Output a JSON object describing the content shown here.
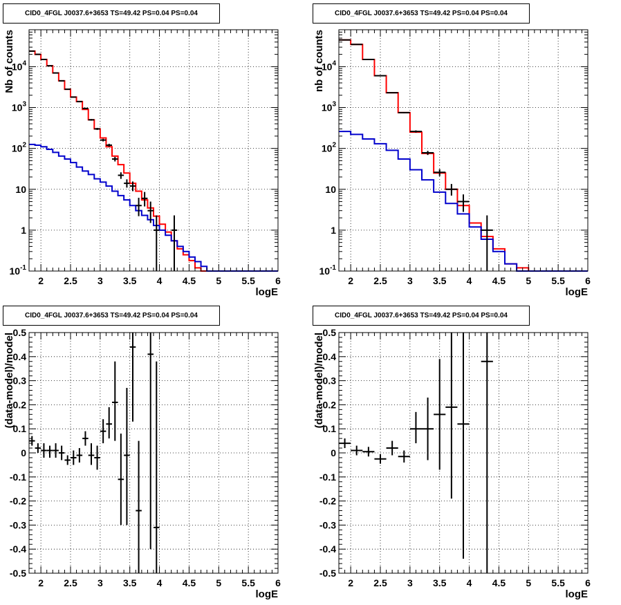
{
  "colors": {
    "data": "#000000",
    "total_model": "#ff0000",
    "source_model": "#0000cc",
    "grid": "#000000"
  },
  "chart_data": [
    {
      "id": "tl",
      "type": "line",
      "title": "CID0_4FGL J0037.6+3653 TS=49.42 PS=0.04 PS=0.04",
      "xlabel": "logE",
      "ylabel": "Nb of counts",
      "xlim": [
        1.8,
        6.0
      ],
      "ylim": [
        0.1,
        80000
      ],
      "yscale": "log",
      "grid": true,
      "xticks": [
        2,
        2.5,
        3,
        3.5,
        4,
        4.5,
        5,
        5.5,
        6
      ],
      "xtick_labels": [
        "2",
        "2.5",
        "3",
        "3.5",
        "4",
        "4.5",
        "5",
        "5.5",
        "6"
      ],
      "yticks": [
        0.1,
        1,
        10,
        100,
        1000,
        10000
      ],
      "ytick_labels": [
        "10^-1",
        "1",
        "10",
        "10^2",
        "10^3",
        "10^4"
      ],
      "bin_edges": [
        1.8,
        1.9,
        2.0,
        2.1,
        2.2,
        2.3,
        2.4,
        2.5,
        2.6,
        2.7,
        2.8,
        2.9,
        3.0,
        3.1,
        3.2,
        3.3,
        3.4,
        3.5,
        3.6,
        3.7,
        3.8,
        3.9,
        4.0,
        4.1,
        4.2,
        4.3,
        4.4,
        4.5,
        4.6,
        4.7,
        4.8,
        4.9,
        5.0,
        5.1,
        5.2,
        5.3,
        5.4,
        5.5,
        5.6,
        5.7,
        5.8,
        5.9,
        6.0
      ],
      "series": [
        {
          "name": "total model",
          "kind": "step",
          "color": "total_model",
          "values": [
            24000,
            20000,
            15000,
            10500,
            7000,
            4500,
            2800,
            1800,
            1400,
            900,
            500,
            300,
            180,
            110,
            65,
            40,
            25,
            14,
            9,
            5.5,
            3.5,
            2.2,
            1.4,
            0.9,
            0.55,
            0.35,
            0.25,
            0.18,
            0.12,
            0.1,
            0.1,
            0.1,
            0.1,
            0.1,
            0.1,
            0.1,
            0.1,
            0.1,
            0.1,
            0.1,
            0.1,
            0.1
          ]
        },
        {
          "name": "source model",
          "kind": "step",
          "color": "source_model",
          "values": [
            125,
            120,
            110,
            95,
            80,
            65,
            55,
            45,
            35,
            28,
            23,
            18,
            15,
            12,
            9,
            7,
            5.5,
            4,
            3,
            2.3,
            1.8,
            1.3,
            1.0,
            0.75,
            0.55,
            0.4,
            0.3,
            0.22,
            0.17,
            0.13,
            0.1,
            0.1,
            0.1,
            0.1,
            0.1,
            0.1,
            0.1,
            0.1,
            0.1,
            0.1,
            0.1,
            0.1
          ]
        },
        {
          "name": "data",
          "kind": "errorbar",
          "color": "data",
          "x": [
            1.85,
            1.95,
            2.05,
            2.15,
            2.25,
            2.35,
            2.45,
            2.55,
            2.65,
            2.75,
            2.85,
            2.95,
            3.05,
            3.15,
            3.25,
            3.35,
            3.45,
            3.55,
            3.65,
            3.75,
            3.85,
            3.95,
            4.25
          ],
          "y": [
            24000,
            20000,
            15000,
            10500,
            7000,
            4500,
            2800,
            1800,
            1400,
            950,
            500,
            300,
            160,
            120,
            55,
            22,
            14,
            12,
            4,
            6,
            3,
            1,
            1
          ],
          "ylo": [
            23800,
            19800,
            14850,
            10400,
            6900,
            4430,
            2750,
            1760,
            1360,
            920,
            478,
            283,
            148,
            110,
            48,
            18,
            11,
            9,
            2.2,
            3.8,
            1.5,
            0.1,
            0.1
          ],
          "yhi": [
            24200,
            20200,
            15150,
            10600,
            7100,
            4570,
            2850,
            1840,
            1440,
            980,
            522,
            317,
            172,
            130,
            62,
            26,
            17.5,
            15.5,
            6.2,
            8.6,
            5,
            2.3,
            2.3
          ],
          "xerr": 0.05
        }
      ]
    },
    {
      "id": "tr",
      "type": "line",
      "title": "CID0_4FGL J0037.6+3653 TS=49.42 PS=0.04 PS=0.04",
      "xlabel": "logE",
      "ylabel": "nb of counts",
      "xlim": [
        1.8,
        6.0
      ],
      "ylim": [
        0.1,
        80000
      ],
      "yscale": "log",
      "grid": true,
      "xticks": [
        2,
        2.5,
        3,
        3.5,
        4,
        4.5,
        5,
        5.5,
        6
      ],
      "xtick_labels": [
        "2",
        "2.5",
        "3",
        "3.5",
        "4",
        "4.5",
        "5",
        "5.5",
        "6"
      ],
      "yticks": [
        0.1,
        1,
        10,
        100,
        1000,
        10000
      ],
      "ytick_labels": [
        "10^-1",
        "1",
        "10",
        "10^2",
        "10^3",
        "10^4"
      ],
      "bin_edges": [
        1.8,
        2.0,
        2.2,
        2.4,
        2.6,
        2.8,
        3.0,
        3.2,
        3.4,
        3.6,
        3.8,
        4.0,
        4.2,
        4.4,
        4.6,
        4.8,
        5.0,
        5.2,
        5.4,
        5.6,
        5.8,
        6.0
      ],
      "series": [
        {
          "name": "total model",
          "kind": "step",
          "color": "total_model",
          "values": [
            45000,
            35000,
            15000,
            6000,
            2300,
            750,
            250,
            75,
            25,
            10,
            4,
            1.5,
            0.7,
            0.35,
            0.15,
            0.12,
            0.1,
            0.1,
            0.1,
            0.1,
            0.1
          ]
        },
        {
          "name": "source model",
          "kind": "step",
          "color": "source_model",
          "values": [
            260,
            220,
            170,
            130,
            90,
            55,
            30,
            17,
            8.5,
            4.5,
            2.5,
            1.2,
            0.6,
            0.3,
            0.15,
            0.1,
            0.1,
            0.1,
            0.1,
            0.1,
            0.1
          ]
        },
        {
          "name": "data",
          "kind": "errorbar",
          "color": "data",
          "x": [
            1.9,
            2.1,
            2.3,
            2.5,
            2.7,
            2.9,
            3.1,
            3.3,
            3.5,
            3.7,
            3.9,
            4.3
          ],
          "y": [
            45000,
            35000,
            15000,
            6000,
            2300,
            750,
            260,
            78,
            26,
            10,
            5,
            1
          ],
          "ylo": [
            44790,
            34810,
            14880,
            5920,
            2250,
            723,
            244,
            69,
            21,
            7,
            2.8,
            0.1
          ],
          "yhi": [
            45210,
            35190,
            15120,
            6080,
            2350,
            777,
            276,
            87,
            31,
            13.5,
            7.5,
            2.3
          ],
          "xerr": 0.1
        }
      ]
    },
    {
      "id": "bl",
      "type": "scatter",
      "title": "CID0_4FGL J0037.6+3653 TS=49.42 PS=0.04 PS=0.04",
      "xlabel": "logE",
      "ylabel": "(data-model)/model",
      "xlim": [
        1.8,
        6.0
      ],
      "ylim": [
        -0.5,
        0.5
      ],
      "yscale": "linear",
      "grid": true,
      "xticks": [
        2,
        2.5,
        3,
        3.5,
        4,
        4.5,
        5,
        5.5,
        6
      ],
      "xtick_labels": [
        "2",
        "2.5",
        "3",
        "3.5",
        "4",
        "4.5",
        "5",
        "5.5",
        "6"
      ],
      "yticks": [
        -0.5,
        -0.4,
        -0.3,
        -0.2,
        -0.1,
        0,
        0.1,
        0.2,
        0.3,
        0.4,
        0.5
      ],
      "ytick_labels": [
        "-0.5",
        "-0.4",
        "-0.3",
        "-0.2",
        "-0.1",
        "0",
        "0.1",
        "0.2",
        "0.3",
        "0.4",
        "0.5"
      ],
      "series": [
        {
          "name": "residuals",
          "kind": "errorbar",
          "color": "data",
          "x": [
            1.85,
            1.95,
            2.05,
            2.15,
            2.25,
            2.35,
            2.45,
            2.55,
            2.65,
            2.75,
            2.85,
            2.95,
            3.05,
            3.15,
            3.25,
            3.35,
            3.45,
            3.55,
            3.65,
            3.85,
            3.95
          ],
          "y": [
            0.05,
            0.02,
            0.01,
            0.01,
            0.01,
            0.0,
            -0.03,
            -0.02,
            -0.01,
            0.06,
            -0.01,
            -0.02,
            0.09,
            0.12,
            0.21,
            -0.11,
            -0.01,
            0.44,
            -0.24,
            0.41,
            -0.31
          ],
          "ylo": [
            0.03,
            0.0,
            -0.02,
            -0.02,
            -0.02,
            -0.03,
            -0.05,
            -0.05,
            -0.04,
            0.03,
            -0.05,
            -0.07,
            0.04,
            0.06,
            0.05,
            -0.3,
            -0.3,
            0.13,
            -0.5,
            -0.4,
            -0.5
          ],
          "yhi": [
            0.07,
            0.04,
            0.04,
            0.03,
            0.04,
            0.03,
            -0.01,
            0.01,
            0.02,
            0.09,
            0.04,
            0.03,
            0.14,
            0.19,
            0.38,
            0.08,
            0.27,
            0.5,
            0.05,
            0.5,
            0.38
          ],
          "xerr": 0.05
        }
      ]
    },
    {
      "id": "br",
      "type": "scatter",
      "title": "CID0_4FGL J0037.6+3653 TS=49.42 PS=0.04 PS=0.04",
      "xlabel": "logE",
      "ylabel": "(data-model)/model",
      "xlim": [
        1.8,
        6.0
      ],
      "ylim": [
        -0.5,
        0.5
      ],
      "yscale": "linear",
      "grid": true,
      "xticks": [
        2,
        2.5,
        3,
        3.5,
        4,
        4.5,
        5,
        5.5,
        6
      ],
      "xtick_labels": [
        "2",
        "2.5",
        "3",
        "3.5",
        "4",
        "4.5",
        "5",
        "5.5",
        "6"
      ],
      "yticks": [
        -0.5,
        -0.4,
        -0.3,
        -0.2,
        -0.1,
        0,
        0.1,
        0.2,
        0.3,
        0.4,
        0.5
      ],
      "ytick_labels": [
        "-0.5",
        "-0.4",
        "-0.3",
        "-0.2",
        "-0.1",
        "0",
        "0.1",
        "0.2",
        "0.3",
        "0.4",
        "0.5"
      ],
      "series": [
        {
          "name": "residuals",
          "kind": "errorbar",
          "color": "data",
          "x": [
            1.9,
            2.1,
            2.3,
            2.5,
            2.7,
            2.9,
            3.1,
            3.3,
            3.5,
            3.7,
            3.9,
            4.3
          ],
          "y": [
            0.04,
            0.01,
            0.005,
            -0.025,
            0.02,
            -0.015,
            0.1,
            0.1,
            0.16,
            0.19,
            0.12,
            0.38
          ],
          "ylo": [
            0.02,
            -0.01,
            -0.015,
            -0.045,
            -0.01,
            -0.04,
            0.04,
            -0.03,
            -0.07,
            -0.19,
            -0.44,
            -0.5
          ],
          "yhi": [
            0.06,
            0.03,
            0.025,
            -0.005,
            0.05,
            0.01,
            0.17,
            0.23,
            0.39,
            0.5,
            0.5,
            0.5
          ],
          "xerr": 0.1
        }
      ]
    }
  ]
}
